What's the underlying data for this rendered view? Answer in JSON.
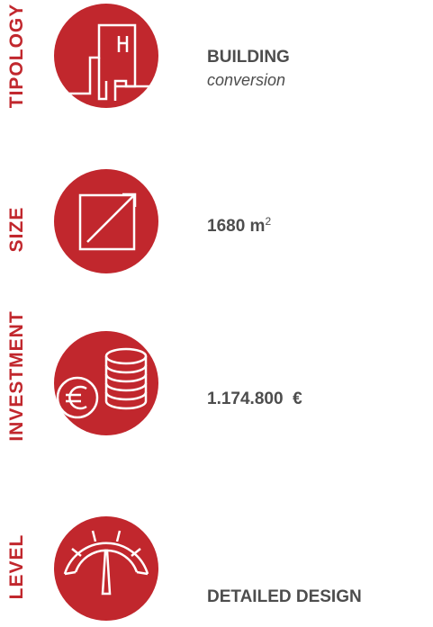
{
  "items": [
    {
      "label": "TIPOLOGY",
      "title": "BUILDING",
      "subtitle": "conversion"
    },
    {
      "label": "SIZE",
      "title": "1680 m",
      "superscript": "2"
    },
    {
      "label": "INVESTMENT",
      "title": "1.174.800  €"
    },
    {
      "label": "LEVEL",
      "title": "DETAILED DESIGN"
    }
  ]
}
